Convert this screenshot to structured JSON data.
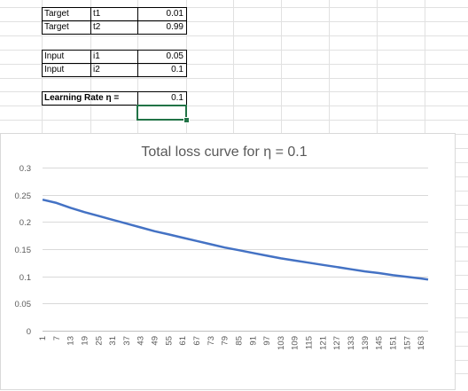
{
  "sheet": {
    "rows": [
      {
        "label": "Target",
        "name": "t1",
        "value": "0.01"
      },
      {
        "label": "Target",
        "name": "t2",
        "value": "0.99"
      },
      {
        "label": "Input",
        "name": "i1",
        "value": "0.05"
      },
      {
        "label": "Input",
        "name": "i2",
        "value": "0.1"
      }
    ],
    "learning_rate_label": "Learning Rate η =",
    "learning_rate_value": "0.1"
  },
  "chart_data": {
    "type": "line",
    "title": "Total loss curve for  η = 0.1",
    "xlabel": "",
    "ylabel": "",
    "ylim": [
      0,
      0.3
    ],
    "yticks": [
      "0",
      "0.05",
      "0.1",
      "0.15",
      "0.2",
      "0.25",
      "0.3"
    ],
    "xticks": [
      "1",
      "7",
      "13",
      "19",
      "25",
      "31",
      "37",
      "43",
      "49",
      "55",
      "61",
      "67",
      "73",
      "79",
      "85",
      "91",
      "97",
      "103",
      "109",
      "115",
      "121",
      "127",
      "133",
      "139",
      "145",
      "151",
      "157",
      "163"
    ],
    "grid": true,
    "series_color": "#4472c4",
    "x": [
      1,
      7,
      13,
      19,
      25,
      31,
      37,
      43,
      49,
      55,
      61,
      67,
      73,
      79,
      85,
      91,
      97,
      103,
      109,
      115,
      121,
      127,
      133,
      139,
      145,
      151,
      157,
      163,
      166
    ],
    "y": [
      0.241,
      0.235,
      0.226,
      0.218,
      0.211,
      0.204,
      0.197,
      0.19,
      0.183,
      0.177,
      0.171,
      0.165,
      0.159,
      0.153,
      0.148,
      0.143,
      0.138,
      0.133,
      0.129,
      0.125,
      0.121,
      0.117,
      0.113,
      0.109,
      0.106,
      0.102,
      0.099,
      0.096,
      0.094
    ]
  }
}
